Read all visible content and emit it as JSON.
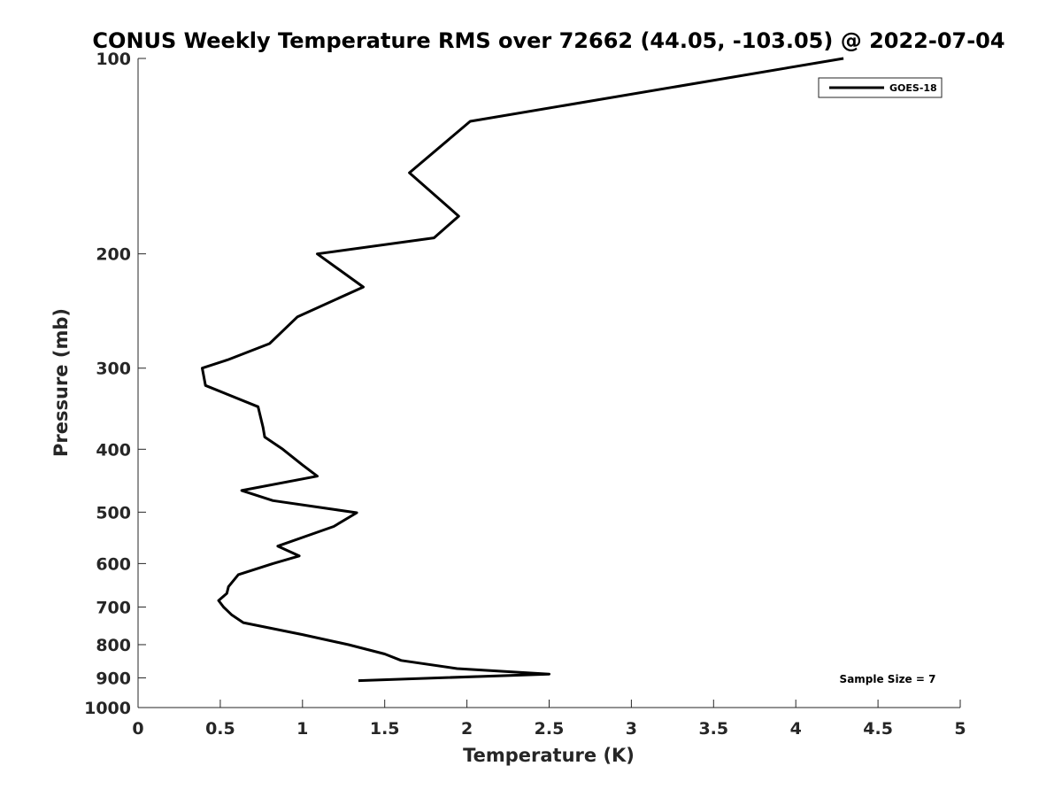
{
  "chart_data": {
    "type": "line",
    "title": "CONUS Weekly Temperature RMS over 72662 (44.05, -103.05) @ 2022-07-04",
    "xlabel": "Temperature (K)",
    "ylabel": "Pressure (mb)",
    "xlim": [
      0,
      5
    ],
    "ylim": [
      100,
      1000
    ],
    "y_scale": "log",
    "y_reversed": true,
    "grid": false,
    "legend_position": "top-right",
    "x_ticks": [
      0,
      0.5,
      1,
      1.5,
      2,
      2.5,
      3,
      3.5,
      4,
      4.5,
      5
    ],
    "x_tick_labels": [
      "0",
      "0.5",
      "1",
      "1.5",
      "2",
      "2.5",
      "3",
      "3.5",
      "4",
      "4.5",
      "5"
    ],
    "y_ticks": [
      100,
      200,
      300,
      400,
      500,
      600,
      700,
      800,
      900,
      1000
    ],
    "y_tick_labels": [
      "100",
      "200",
      "300",
      "400",
      "500",
      "600",
      "700",
      "800",
      "900",
      "1000"
    ],
    "series": [
      {
        "name": "GOES-18",
        "color": "#000000",
        "points": [
          [
            4.29,
            100
          ],
          [
            2.02,
            125
          ],
          [
            1.65,
            150
          ],
          [
            1.95,
            175
          ],
          [
            1.8,
            189
          ],
          [
            1.09,
            200
          ],
          [
            1.37,
            225
          ],
          [
            0.97,
            250
          ],
          [
            0.8,
            275
          ],
          [
            0.55,
            291
          ],
          [
            0.39,
            300
          ],
          [
            0.41,
            319
          ],
          [
            0.73,
            344
          ],
          [
            0.76,
            370
          ],
          [
            0.77,
            383
          ],
          [
            0.88,
            400
          ],
          [
            1.0,
            423
          ],
          [
            1.09,
            440
          ],
          [
            0.63,
            463
          ],
          [
            0.82,
            480
          ],
          [
            1.33,
            501
          ],
          [
            1.19,
            526
          ],
          [
            0.85,
            564
          ],
          [
            0.98,
            584
          ],
          [
            0.82,
            600
          ],
          [
            0.61,
            624
          ],
          [
            0.55,
            651
          ],
          [
            0.54,
            667
          ],
          [
            0.49,
            684
          ],
          [
            0.52,
            700
          ],
          [
            0.57,
            720
          ],
          [
            0.64,
            740
          ],
          [
            1.0,
            772
          ],
          [
            1.28,
            800
          ],
          [
            1.5,
            827
          ],
          [
            1.6,
            846
          ],
          [
            1.94,
            871
          ],
          [
            2.5,
            888
          ],
          [
            1.34,
            909
          ]
        ]
      }
    ],
    "annotation": "Sample Size = 7"
  }
}
